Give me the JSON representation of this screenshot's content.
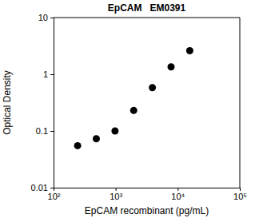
{
  "chart_data": {
    "type": "scatter",
    "title": "EpCAM   EM0391",
    "x_label": "EpCAM recombinant (pg/mL)",
    "y_label": "Optical Density",
    "x": [
      244,
      488,
      977,
      1953,
      3906,
      7813,
      15625
    ],
    "values": [
      0.055,
      0.073,
      0.1,
      0.23,
      0.58,
      1.35,
      2.6
    ],
    "color": "#000000",
    "marker": "circle",
    "log": true,
    "xlim": [
      100,
      100000
    ],
    "xticks": [
      {
        "value": 100,
        "label": "10²"
      },
      {
        "value": 1000,
        "label": "10³"
      },
      {
        "value": 10000,
        "label": "10⁴"
      },
      {
        "value": 100000,
        "label": "10⁵"
      }
    ],
    "ylim": [
      0.01,
      10
    ],
    "yticks": [
      0.01,
      0.1,
      1,
      10
    ]
  }
}
